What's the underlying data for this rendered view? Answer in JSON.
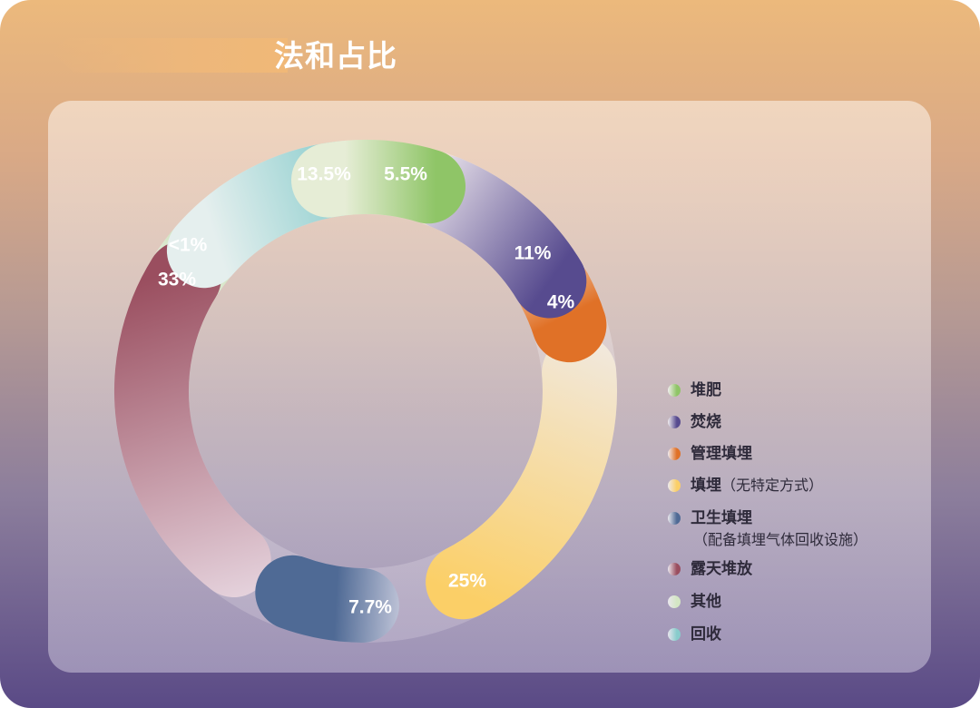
{
  "title": "法和占比",
  "colors": {
    "compost": "#8fc567",
    "incineration": "#574b8f",
    "managed_landfill": "#e07127",
    "landfill_unspecified": "#fbcf67",
    "sanitary_landfill": "#4f6a95",
    "open_dumping": "#9a4e5f",
    "other": "#d4e6c4",
    "recycling": "#88cccc"
  },
  "chart_data": {
    "type": "pie",
    "style": "donut",
    "legend_position": "right",
    "slices": [
      {
        "name": "堆肥",
        "label": "5.5%",
        "value": 5.5,
        "color": "#8fc567"
      },
      {
        "name": "焚烧",
        "label": "11%",
        "value": 11,
        "color": "#574b8f"
      },
      {
        "name": "管理填埋",
        "label": "4%",
        "value": 4,
        "color": "#e07127"
      },
      {
        "name": "填埋",
        "note": "（无特定方式）",
        "label": "25%",
        "value": 25,
        "color": "#fbcf67"
      },
      {
        "name": "卫生填埋",
        "sub": "（配备填埋气体回收设施）",
        "label": "7.7%",
        "value": 7.7,
        "color": "#4f6a95"
      },
      {
        "name": "露天堆放",
        "label": "33%",
        "value": 33,
        "color": "#9a4e5f"
      },
      {
        "name": "其他",
        "label": "<1%",
        "value": 1,
        "color": "#d4e6c4"
      },
      {
        "name": "回收",
        "label": "13.5%",
        "value": 13.5,
        "color": "#88cccc"
      }
    ]
  }
}
